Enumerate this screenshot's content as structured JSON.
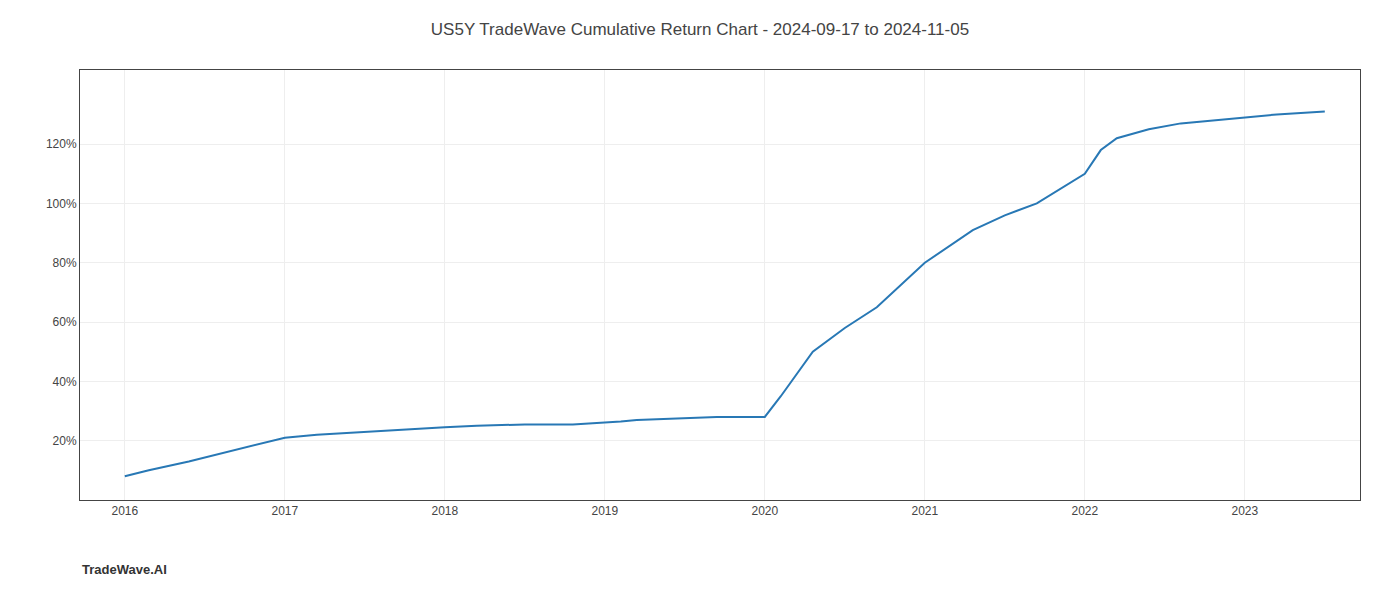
{
  "chart_data": {
    "type": "line",
    "title": "US5Y TradeWave Cumulative Return Chart - 2024-09-17 to 2024-11-05",
    "x": [
      2016.0,
      2016.15,
      2016.4,
      2016.7,
      2017.0,
      2017.2,
      2017.5,
      2017.8,
      2018.0,
      2018.2,
      2018.5,
      2018.8,
      2019.0,
      2019.05,
      2019.1,
      2019.2,
      2019.5,
      2019.7,
      2019.9,
      2020.0,
      2020.1,
      2020.3,
      2020.5,
      2020.7,
      2021.0,
      2021.3,
      2021.5,
      2021.7,
      2022.0,
      2022.1,
      2022.2,
      2022.4,
      2022.6,
      2022.8,
      2023.0,
      2023.2,
      2023.5
    ],
    "values": [
      8,
      10,
      13,
      17,
      21,
      22,
      23,
      24,
      24.5,
      25,
      25.5,
      25.5,
      26,
      26.2,
      26.5,
      27,
      27.5,
      28,
      28,
      28,
      35,
      50,
      58,
      65,
      80,
      91,
      96,
      100,
      110,
      118,
      122,
      125,
      127,
      128,
      129,
      130,
      131
    ],
    "color": "#2878b5",
    "xlim": [
      2015.72,
      2023.72
    ],
    "ylim": [
      0,
      145
    ],
    "xticks": [
      2016,
      2017,
      2018,
      2019,
      2020,
      2021,
      2022,
      2023
    ],
    "yticks": [
      {
        "value": 20,
        "label": "20%"
      },
      {
        "value": 40,
        "label": "40%"
      },
      {
        "value": 60,
        "label": "60%"
      },
      {
        "value": 80,
        "label": "80%"
      },
      {
        "value": 100,
        "label": "100%"
      },
      {
        "value": 120,
        "label": "120%"
      }
    ],
    "grid": true,
    "annotations": [
      "TradeWave.AI"
    ]
  }
}
